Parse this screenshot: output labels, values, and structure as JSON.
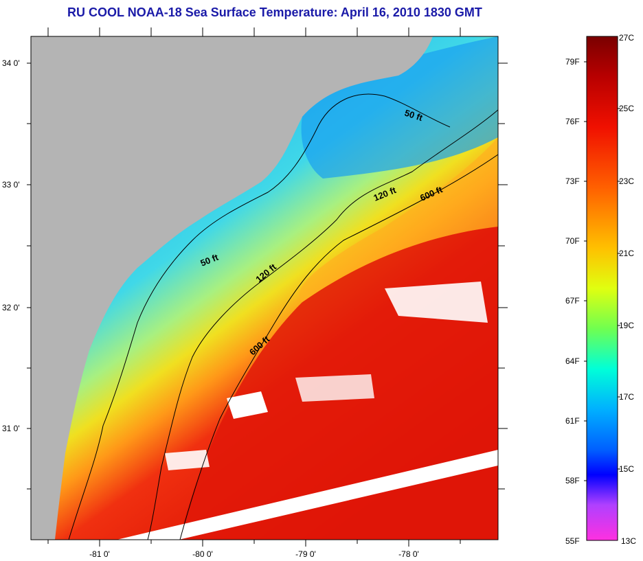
{
  "title": "RU COOL  NOAA-18  Sea Surface Temperature:  April 16, 2010 1830 GMT",
  "map": {
    "lat_ticks": [
      "34 0'",
      "33 0'",
      "32 0'",
      "31 0'"
    ],
    "lon_ticks": [
      "-81 0'",
      "-80 0'",
      "-79 0'",
      "-78 0'"
    ],
    "contour_labels": [
      "50 ft",
      "120 ft",
      "600 ft",
      "50 ft",
      "120 ft",
      "600 ft"
    ],
    "colors": {
      "land": "#b4b4b4",
      "cloud": "#ffffff"
    }
  },
  "colorbar": {
    "fahrenheit_labels": [
      "79F",
      "76F",
      "73F",
      "70F",
      "67F",
      "64F",
      "61F",
      "58F",
      "55F"
    ],
    "celsius_labels": [
      "27C",
      "25C",
      "23C",
      "21C",
      "19C",
      "17C",
      "15C",
      "13C"
    ],
    "colors": [
      "#7a0000",
      "#c80000",
      "#ff3000",
      "#ff8000",
      "#ffd000",
      "#f0ff00",
      "#80ff40",
      "#00ffd0",
      "#00c8ff",
      "#0070ff",
      "#0000ff",
      "#a040ff",
      "#ff40ff"
    ]
  }
}
